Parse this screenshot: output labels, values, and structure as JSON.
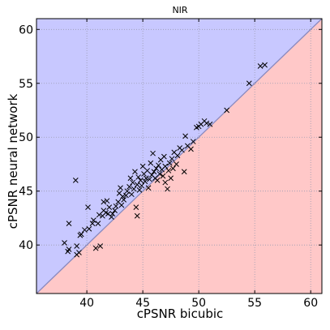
{
  "chart_data": {
    "type": "scatter",
    "title": "NIR",
    "xlabel": "cPSNR bicubic",
    "ylabel": "cPSNR neural network",
    "xlim": [
      35.5,
      61
    ],
    "ylim": [
      35.5,
      61
    ],
    "xticks": [
      40,
      45,
      50,
      55,
      60
    ],
    "yticks": [
      40,
      45,
      50,
      55,
      60
    ],
    "tick_labels_x": [
      "40",
      "45",
      "50",
      "55",
      "60"
    ],
    "tick_labels_y": [
      "40",
      "45",
      "50",
      "55",
      "60"
    ],
    "grid": true,
    "marker": "x",
    "colors": {
      "above_diagonal": "#c8c8ff",
      "below_diagonal": "#ffc8c8",
      "diagonal": "#8a8abf",
      "grid": "#9a9ab0",
      "marker": "#000000"
    },
    "points": [
      {
        "x": 38.0,
        "y": 40.2
      },
      {
        "x": 38.3,
        "y": 39.4
      },
      {
        "x": 38.4,
        "y": 39.6
      },
      {
        "x": 38.4,
        "y": 42.0
      },
      {
        "x": 39.0,
        "y": 46.0
      },
      {
        "x": 39.1,
        "y": 39.9
      },
      {
        "x": 39.1,
        "y": 39.1
      },
      {
        "x": 39.3,
        "y": 39.3
      },
      {
        "x": 39.4,
        "y": 40.9
      },
      {
        "x": 39.5,
        "y": 41.0
      },
      {
        "x": 39.8,
        "y": 41.4
      },
      {
        "x": 40.1,
        "y": 43.5
      },
      {
        "x": 40.2,
        "y": 41.5
      },
      {
        "x": 40.5,
        "y": 42.0
      },
      {
        "x": 40.6,
        "y": 42.3
      },
      {
        "x": 40.8,
        "y": 39.7
      },
      {
        "x": 41.0,
        "y": 42.0
      },
      {
        "x": 41.1,
        "y": 42.8
      },
      {
        "x": 41.2,
        "y": 39.9
      },
      {
        "x": 41.4,
        "y": 42.7
      },
      {
        "x": 41.5,
        "y": 43.2
      },
      {
        "x": 41.5,
        "y": 44.0
      },
      {
        "x": 41.7,
        "y": 43.0
      },
      {
        "x": 41.8,
        "y": 44.1
      },
      {
        "x": 41.9,
        "y": 42.9
      },
      {
        "x": 42.0,
        "y": 43.5
      },
      {
        "x": 42.2,
        "y": 42.6
      },
      {
        "x": 42.3,
        "y": 42.9
      },
      {
        "x": 42.5,
        "y": 43.2
      },
      {
        "x": 42.6,
        "y": 43.6
      },
      {
        "x": 42.8,
        "y": 44.0
      },
      {
        "x": 42.9,
        "y": 44.8
      },
      {
        "x": 43.0,
        "y": 45.3
      },
      {
        "x": 43.1,
        "y": 43.7
      },
      {
        "x": 43.2,
        "y": 44.5
      },
      {
        "x": 43.3,
        "y": 44.2
      },
      {
        "x": 43.5,
        "y": 44.6
      },
      {
        "x": 43.6,
        "y": 45.0
      },
      {
        "x": 43.8,
        "y": 45.4
      },
      {
        "x": 43.9,
        "y": 46.2
      },
      {
        "x": 44.0,
        "y": 44.7
      },
      {
        "x": 44.1,
        "y": 45.8
      },
      {
        "x": 44.2,
        "y": 45.2
      },
      {
        "x": 44.3,
        "y": 46.8
      },
      {
        "x": 44.4,
        "y": 43.5
      },
      {
        "x": 44.5,
        "y": 45.6
      },
      {
        "x": 44.5,
        "y": 42.7
      },
      {
        "x": 44.6,
        "y": 46.3
      },
      {
        "x": 44.7,
        "y": 45.1
      },
      {
        "x": 44.8,
        "y": 46.0
      },
      {
        "x": 44.9,
        "y": 45.5
      },
      {
        "x": 45.0,
        "y": 47.3
      },
      {
        "x": 45.1,
        "y": 46.6
      },
      {
        "x": 45.2,
        "y": 45.9
      },
      {
        "x": 45.3,
        "y": 46.2
      },
      {
        "x": 45.4,
        "y": 46.9
      },
      {
        "x": 45.5,
        "y": 45.3
      },
      {
        "x": 45.6,
        "y": 46.1
      },
      {
        "x": 45.7,
        "y": 47.6
      },
      {
        "x": 45.8,
        "y": 46.5
      },
      {
        "x": 45.9,
        "y": 48.5
      },
      {
        "x": 46.0,
        "y": 46.8
      },
      {
        "x": 46.1,
        "y": 46.2
      },
      {
        "x": 46.2,
        "y": 47.1
      },
      {
        "x": 46.3,
        "y": 46.0
      },
      {
        "x": 46.4,
        "y": 47.4
      },
      {
        "x": 46.5,
        "y": 46.6
      },
      {
        "x": 46.6,
        "y": 47.9
      },
      {
        "x": 46.7,
        "y": 47.0
      },
      {
        "x": 46.8,
        "y": 46.4
      },
      {
        "x": 46.9,
        "y": 48.2
      },
      {
        "x": 47.0,
        "y": 45.8
      },
      {
        "x": 47.0,
        "y": 47.3
      },
      {
        "x": 47.2,
        "y": 45.2
      },
      {
        "x": 47.3,
        "y": 46.9
      },
      {
        "x": 47.4,
        "y": 47.6
      },
      {
        "x": 47.5,
        "y": 46.2
      },
      {
        "x": 47.6,
        "y": 48.0
      },
      {
        "x": 47.7,
        "y": 47.1
      },
      {
        "x": 47.8,
        "y": 48.6
      },
      {
        "x": 48.0,
        "y": 47.5
      },
      {
        "x": 48.1,
        "y": 48.3
      },
      {
        "x": 48.3,
        "y": 49.0
      },
      {
        "x": 48.5,
        "y": 48.8
      },
      {
        "x": 48.7,
        "y": 46.8
      },
      {
        "x": 48.8,
        "y": 50.1
      },
      {
        "x": 49.0,
        "y": 49.2
      },
      {
        "x": 49.3,
        "y": 48.9
      },
      {
        "x": 49.5,
        "y": 49.6
      },
      {
        "x": 49.8,
        "y": 50.9
      },
      {
        "x": 50.0,
        "y": 51.0
      },
      {
        "x": 50.2,
        "y": 51.2
      },
      {
        "x": 50.5,
        "y": 51.5
      },
      {
        "x": 50.7,
        "y": 51.3
      },
      {
        "x": 51.0,
        "y": 51.2
      },
      {
        "x": 52.5,
        "y": 52.5
      },
      {
        "x": 54.5,
        "y": 55.0
      },
      {
        "x": 55.5,
        "y": 56.6
      },
      {
        "x": 55.9,
        "y": 56.7
      }
    ]
  }
}
